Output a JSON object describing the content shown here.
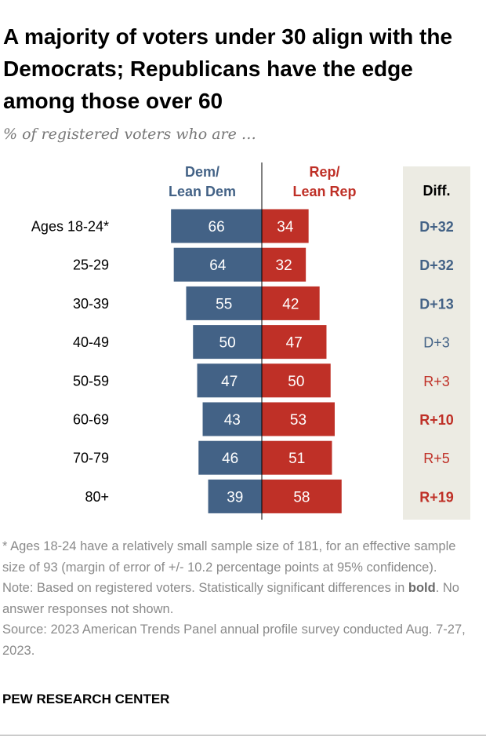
{
  "title": "A majority of voters under 30 align with the Democrats; Republicans have the edge among those over 60",
  "subtitle": "% of registered voters who are …",
  "chart_data": {
    "type": "bar",
    "orientation": "horizontal-diverging",
    "categories": [
      "Ages 18-24*",
      "25-29",
      "30-39",
      "40-49",
      "50-59",
      "60-69",
      "70-79",
      "80+"
    ],
    "series": [
      {
        "name": "Dem/ Lean Dem",
        "name_lines": [
          "Dem/",
          "Lean Dem"
        ],
        "color": "#436286",
        "values": [
          66,
          64,
          55,
          50,
          47,
          43,
          46,
          39
        ]
      },
      {
        "name": "Rep/ Lean Rep",
        "name_lines": [
          "Rep/",
          "Lean Rep"
        ],
        "color": "#bf3027",
        "values": [
          34,
          32,
          42,
          47,
          50,
          53,
          51,
          58
        ]
      }
    ],
    "diff": {
      "header": "Diff.",
      "background": "#ecebe3",
      "values": [
        "D+32",
        "D+32",
        "D+13",
        "D+3",
        "R+3",
        "R+10",
        "R+5",
        "R+19"
      ],
      "bold": [
        true,
        true,
        true,
        false,
        false,
        true,
        false,
        true
      ]
    }
  },
  "notes": {
    "footnote": "* Ages 18-24 have a relatively small sample size of 181, for an effective sample size of 93 (margin of error of +/- 10.2 percentage points at 95% confidence).",
    "note_prefix": "Note: Based on registered voters. Statistically significant differences in ",
    "note_bold": "bold",
    "note_suffix": ". No answer responses not shown.",
    "source": "Source: 2023 American Trends Panel annual profile survey conducted Aug. 7-27, 2023."
  },
  "brand": "PEW RESEARCH CENTER"
}
